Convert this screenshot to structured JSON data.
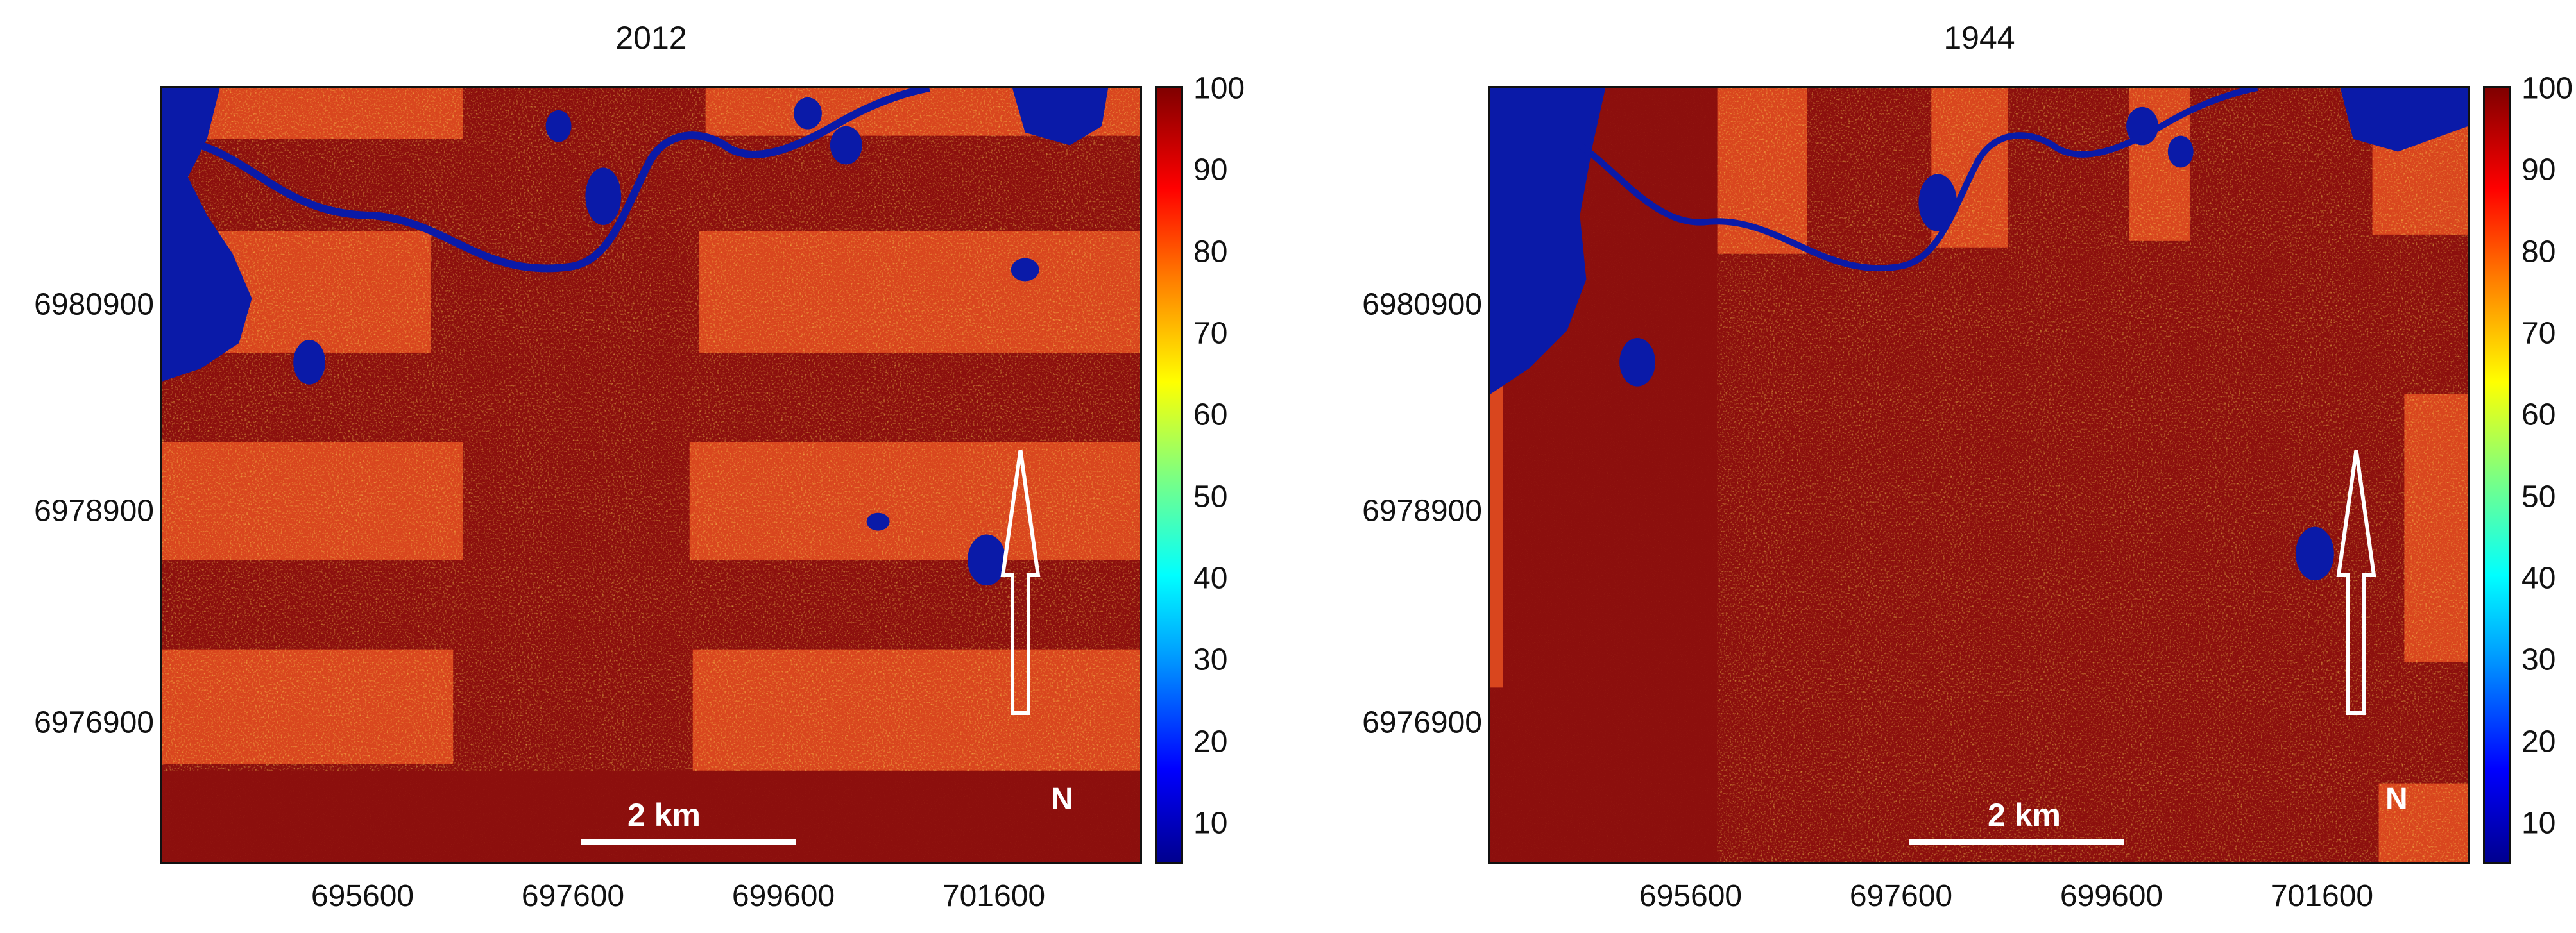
{
  "panels": [
    {
      "title": "2012",
      "y_ticks": [
        "6980900",
        "6978900",
        "6976900"
      ],
      "x_ticks": [
        "695600",
        "697600",
        "699600",
        "701600"
      ],
      "colorbar_ticks": [
        "100",
        "90",
        "80",
        "70",
        "60",
        "50",
        "40",
        "30",
        "20",
        "10"
      ],
      "scale_bar_label": "2 km",
      "north_label": "N"
    },
    {
      "title": "1944",
      "y_ticks": [
        "6980900",
        "6978900",
        "6976900"
      ],
      "x_ticks": [
        "695600",
        "697600",
        "699600",
        "701600"
      ],
      "colorbar_ticks": [
        "100",
        "90",
        "80",
        "70",
        "60",
        "50",
        "40",
        "30",
        "20",
        "10"
      ],
      "scale_bar_label": "2 km",
      "north_label": "N"
    }
  ],
  "colors": {
    "background_dark_red": "#8c0f0d",
    "orange_red_patch": "#d4401c",
    "water_blue": "#0a1aa8",
    "colormap": "jet"
  },
  "icons": {
    "north_arrow": "north-arrow-icon"
  }
}
